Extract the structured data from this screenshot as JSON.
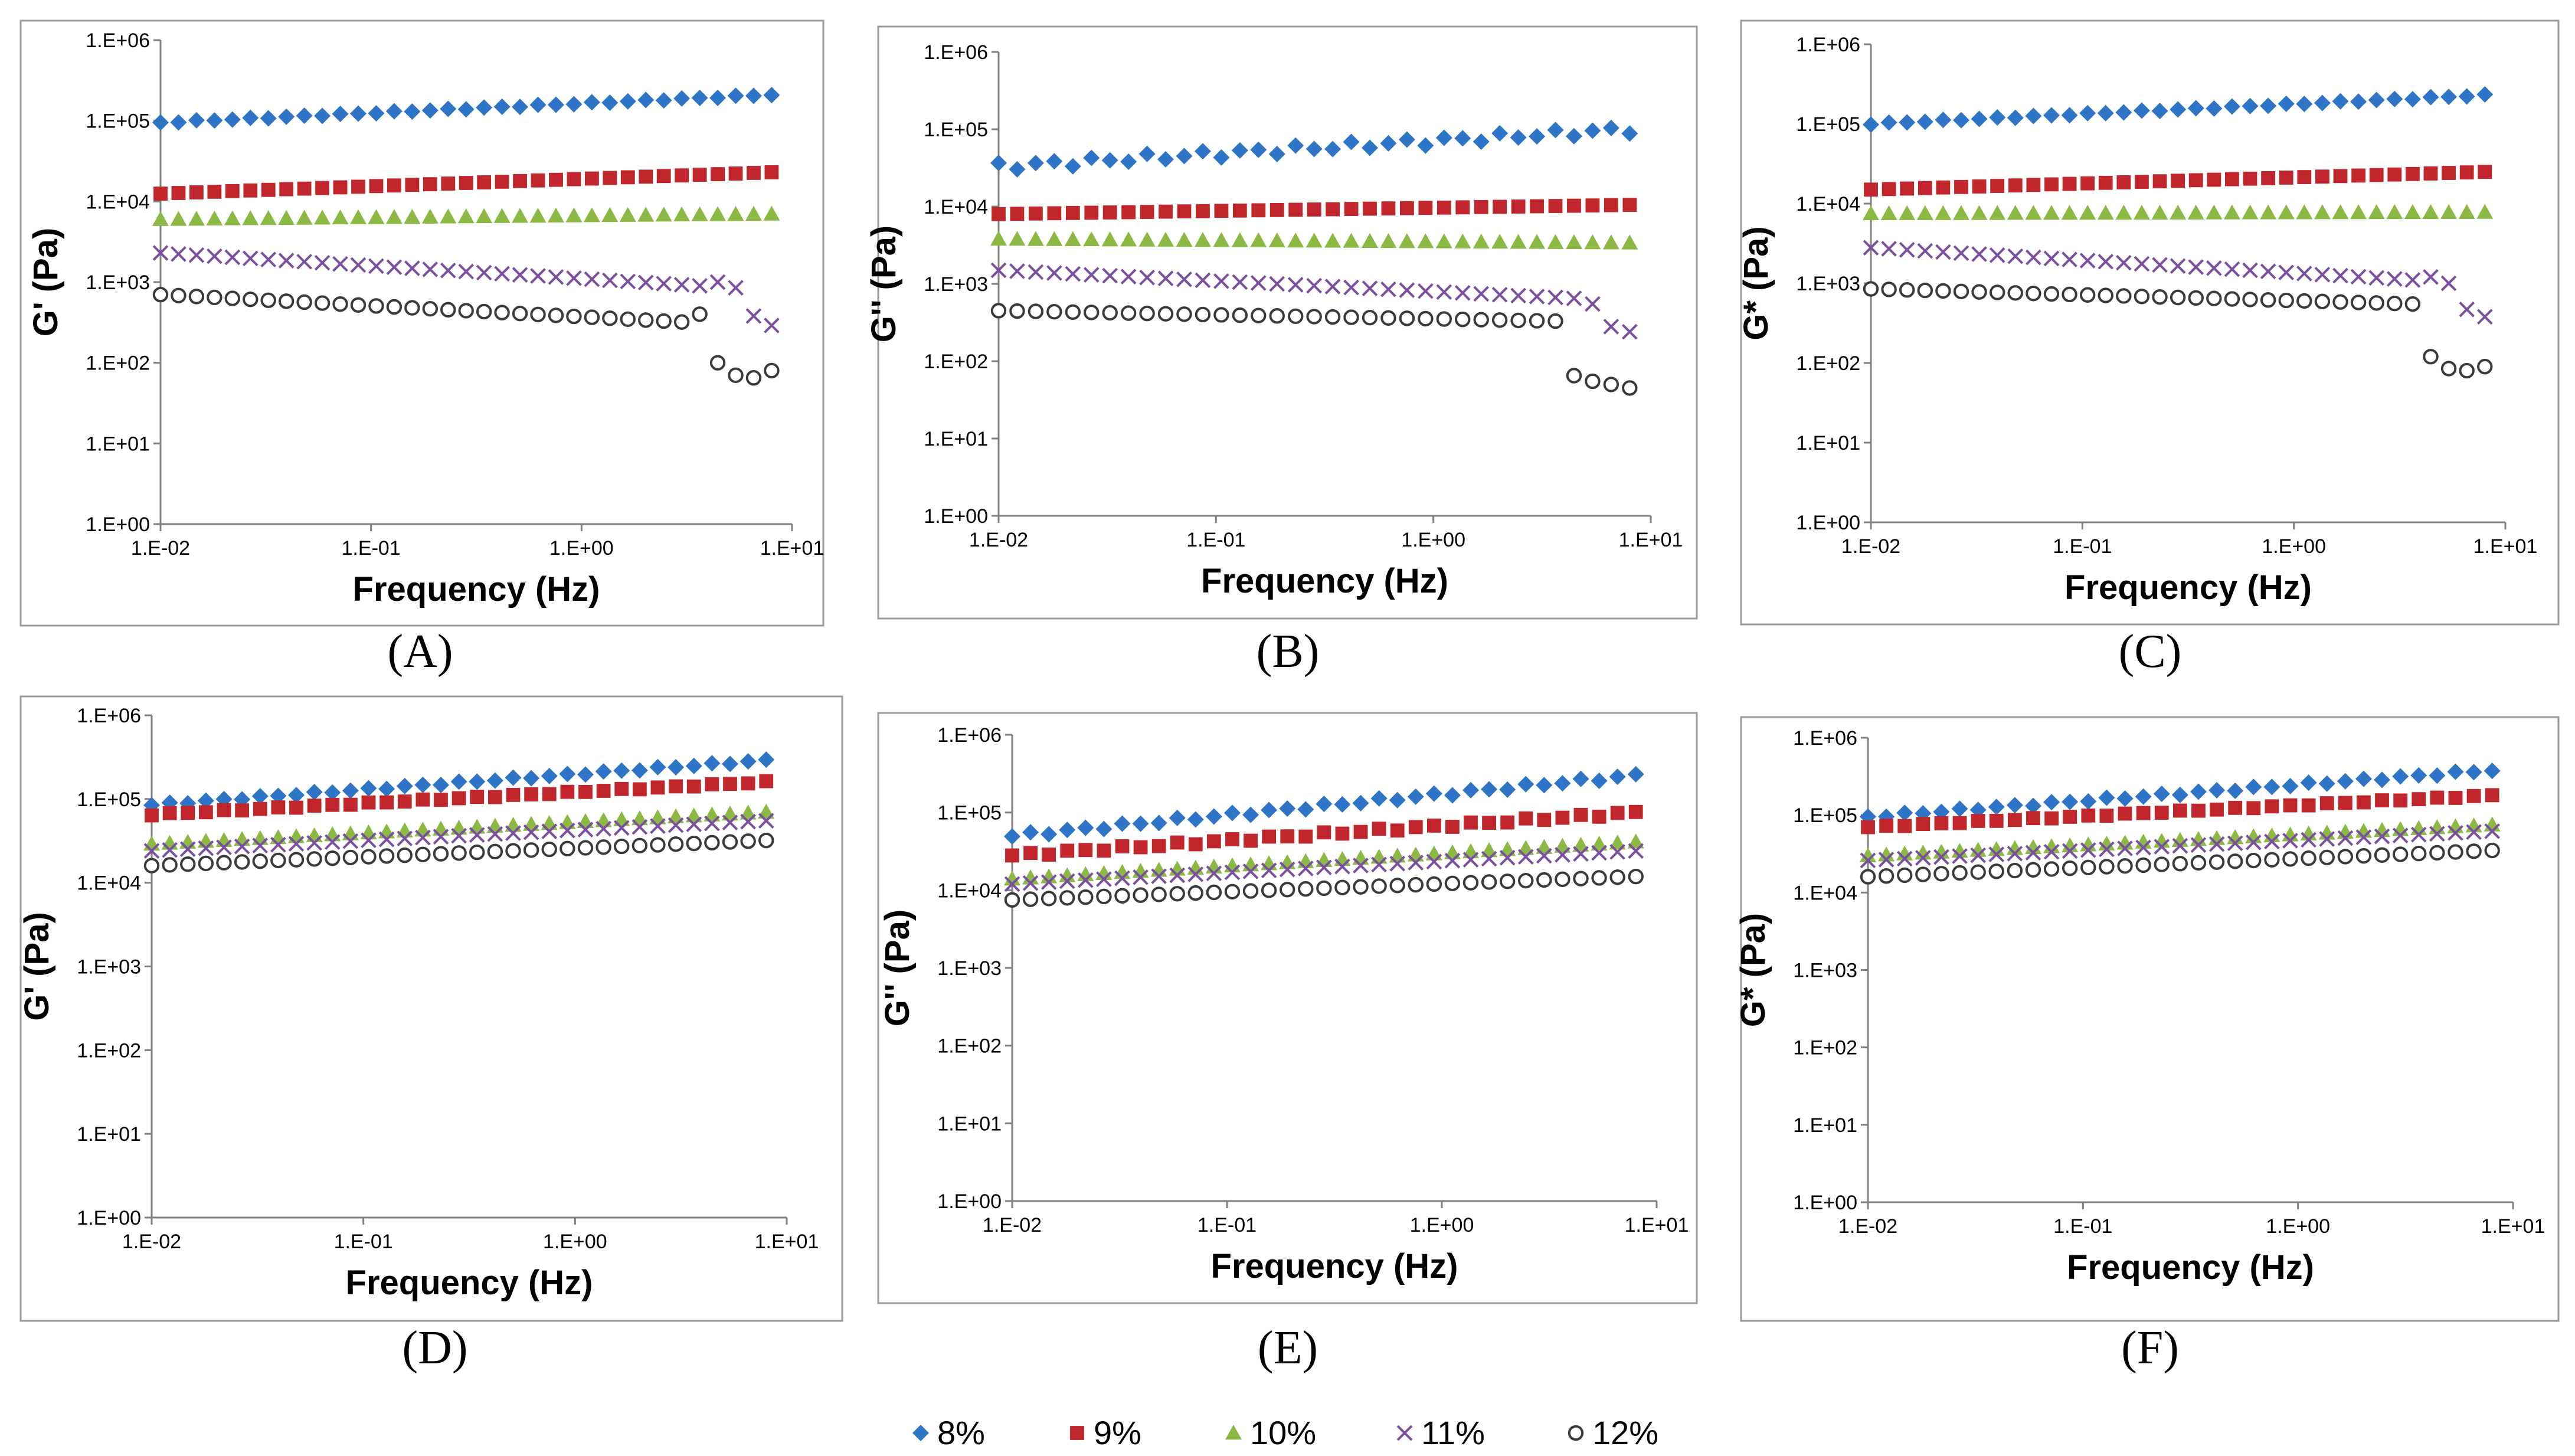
{
  "legend": [
    {
      "label": "8%",
      "marker": "diamond",
      "color": "#2E75C7"
    },
    {
      "label": "9%",
      "marker": "square",
      "color": "#C0262B"
    },
    {
      "label": "10%",
      "marker": "triangle",
      "color": "#8CB844"
    },
    {
      "label": "11%",
      "marker": "cross",
      "color": "#7B4FA0"
    },
    {
      "label": "12%",
      "marker": "circle",
      "color": "#3A3A3A"
    }
  ],
  "chart_data": [
    {
      "panel": "(A)",
      "type": "scatter",
      "xscale": "log",
      "yscale": "log",
      "xlabel": "Frequency (Hz)",
      "ylabel": "G' (Pa)",
      "xlim": [
        0.01,
        10
      ],
      "ylim": [
        1,
        1000000
      ],
      "xticks": [
        "1.E-02",
        "1.E-01",
        "1.E+00",
        "1.E+01"
      ],
      "yticks": [
        "1.E+00",
        "1.E+01",
        "1.E+02",
        "1.E+03",
        "1.E+04",
        "1.E+05",
        "1.E+06"
      ],
      "series": [
        {
          "name": "8%",
          "start": 95000,
          "end": 210000,
          "noise": 0.02
        },
        {
          "name": "9%",
          "start": 12500,
          "end": 23000,
          "noise": 0.0
        },
        {
          "name": "10%",
          "start": 6000,
          "end": 7000,
          "noise": 0.0
        },
        {
          "name": "11%",
          "start": 2300,
          "end": 900,
          "noise": 0.0,
          "tail": [
            1000,
            850,
            380,
            290
          ]
        },
        {
          "name": "12%",
          "start": 700,
          "end": 320,
          "noise": 0.0,
          "tail": [
            400,
            100,
            70,
            65,
            80
          ]
        }
      ]
    },
    {
      "panel": "(B)",
      "type": "scatter",
      "xscale": "log",
      "yscale": "log",
      "xlabel": "Frequency (Hz)",
      "ylabel": "G'' (Pa)",
      "xlim": [
        0.01,
        10
      ],
      "ylim": [
        1,
        1000000
      ],
      "xticks": [
        "1.E-02",
        "1.E-01",
        "1.E+00",
        "1.E+01"
      ],
      "yticks": [
        "1.E+00",
        "1.E+01",
        "1.E+02",
        "1.E+03",
        "1.E+04",
        "1.E+05",
        "1.E+06"
      ],
      "series": [
        {
          "name": "8%",
          "start": 33000,
          "end": 100000,
          "noise": 0.12
        },
        {
          "name": "9%",
          "start": 8000,
          "end": 10500,
          "noise": 0.0
        },
        {
          "name": "10%",
          "start": 3800,
          "end": 3400,
          "noise": 0.0
        },
        {
          "name": "11%",
          "start": 1500,
          "end": 650,
          "noise": 0.0,
          "tail": [
            550,
            280,
            240
          ]
        },
        {
          "name": "12%",
          "start": 450,
          "end": 330,
          "noise": 0.0,
          "tail": [
            65,
            55,
            50,
            45
          ]
        }
      ]
    },
    {
      "panel": "(C)",
      "type": "scatter",
      "xscale": "log",
      "yscale": "log",
      "xlabel": "Frequency (Hz)",
      "ylabel": "G* (Pa)",
      "xlim": [
        0.01,
        10
      ],
      "ylim": [
        1,
        1000000
      ],
      "xticks": [
        "1.E-02",
        "1.E-01",
        "1.E+00",
        "1.E+01"
      ],
      "yticks": [
        "1.E+00",
        "1.E+01",
        "1.E+02",
        "1.E+03",
        "1.E+04",
        "1.E+05",
        "1.E+06"
      ],
      "series": [
        {
          "name": "8%",
          "start": 100000,
          "end": 230000,
          "noise": 0.02
        },
        {
          "name": "9%",
          "start": 15000,
          "end": 25000,
          "noise": 0.0
        },
        {
          "name": "10%",
          "start": 7500,
          "end": 7800,
          "noise": 0.0
        },
        {
          "name": "11%",
          "start": 2800,
          "end": 1100,
          "noise": 0.0,
          "tail": [
            1200,
            1000,
            470,
            380
          ]
        },
        {
          "name": "12%",
          "start": 850,
          "end": 550,
          "noise": 0.0,
          "tail": [
            120,
            85,
            80,
            90
          ]
        }
      ]
    },
    {
      "panel": "(D)",
      "type": "scatter",
      "xscale": "log",
      "yscale": "log",
      "xlabel": "Frequency (Hz)",
      "ylabel": "G' (Pa)",
      "xlim": [
        0.01,
        10
      ],
      "ylim": [
        1,
        1000000
      ],
      "xticks": [
        "1.E-02",
        "1.E-01",
        "1.E+00",
        "1.E+01"
      ],
      "yticks": [
        "1.E+00",
        "1.E+01",
        "1.E+02",
        "1.E+03",
        "1.E+04",
        "1.E+05",
        "1.E+06"
      ],
      "series": [
        {
          "name": "8%",
          "start": 85000,
          "end": 290000,
          "noise": 0.03
        },
        {
          "name": "9%",
          "start": 65000,
          "end": 160000,
          "noise": 0.02
        },
        {
          "name": "10%",
          "start": 29000,
          "end": 70000,
          "noise": 0.0
        },
        {
          "name": "11%",
          "start": 24000,
          "end": 55000,
          "noise": 0.0
        },
        {
          "name": "12%",
          "start": 16000,
          "end": 32000,
          "noise": 0.0
        }
      ]
    },
    {
      "panel": "(E)",
      "type": "scatter",
      "xscale": "log",
      "yscale": "log",
      "xlabel": "Frequency (Hz)",
      "ylabel": "G'' (Pa)",
      "xlim": [
        0.01,
        10
      ],
      "ylim": [
        1,
        1000000
      ],
      "xticks": [
        "1.E-02",
        "1.E-01",
        "1.E+00",
        "1.E+01"
      ],
      "yticks": [
        "1.E+00",
        "1.E+01",
        "1.E+02",
        "1.E+03",
        "1.E+04",
        "1.E+05",
        "1.E+06"
      ],
      "series": [
        {
          "name": "8%",
          "start": 50000,
          "end": 300000,
          "noise": 0.06
        },
        {
          "name": "9%",
          "start": 28000,
          "end": 100000,
          "noise": 0.05
        },
        {
          "name": "10%",
          "start": 14000,
          "end": 42000,
          "noise": 0.0
        },
        {
          "name": "11%",
          "start": 12000,
          "end": 32000,
          "noise": 0.0
        },
        {
          "name": "12%",
          "start": 7500,
          "end": 15000,
          "noise": 0.0
        }
      ]
    },
    {
      "panel": "(F)",
      "type": "scatter",
      "xscale": "log",
      "yscale": "log",
      "xlabel": "Frequency (Hz)",
      "ylabel": "G* (Pa)",
      "xlim": [
        0.01,
        10
      ],
      "ylim": [
        1,
        1000000
      ],
      "xticks": [
        "1.E-02",
        "1.E-01",
        "1.E+00",
        "1.E+01"
      ],
      "yticks": [
        "1.E+00",
        "1.E+01",
        "1.E+02",
        "1.E+03",
        "1.E+04",
        "1.E+05",
        "1.E+06"
      ],
      "series": [
        {
          "name": "8%",
          "start": 95000,
          "end": 380000,
          "noise": 0.04
        },
        {
          "name": "9%",
          "start": 70000,
          "end": 180000,
          "noise": 0.02
        },
        {
          "name": "10%",
          "start": 30000,
          "end": 75000,
          "noise": 0.0
        },
        {
          "name": "11%",
          "start": 26000,
          "end": 62000,
          "noise": 0.0
        },
        {
          "name": "12%",
          "start": 16000,
          "end": 35000,
          "noise": 0.0
        }
      ]
    }
  ]
}
